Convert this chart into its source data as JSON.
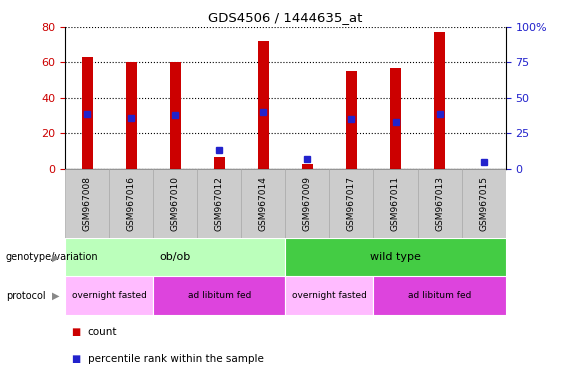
{
  "title": "GDS4506 / 1444635_at",
  "samples": [
    "GSM967008",
    "GSM967016",
    "GSM967010",
    "GSM967012",
    "GSM967014",
    "GSM967009",
    "GSM967017",
    "GSM967011",
    "GSM967013",
    "GSM967015"
  ],
  "counts": [
    63,
    60,
    60,
    7,
    72,
    3,
    55,
    57,
    77,
    0
  ],
  "percentile_ranks": [
    39,
    36,
    38,
    13,
    40,
    7,
    35,
    33,
    39,
    5
  ],
  "bar_color": "#cc0000",
  "percentile_color": "#2222cc",
  "ylim_left": [
    0,
    80
  ],
  "ylim_right": [
    0,
    100
  ],
  "yticks_left": [
    0,
    20,
    40,
    60,
    80
  ],
  "yticks_right": [
    0,
    25,
    50,
    75,
    100
  ],
  "genotype_groups": [
    {
      "label": "ob/ob",
      "start": 0,
      "end": 5,
      "color": "#bbffbb"
    },
    {
      "label": "wild type",
      "start": 5,
      "end": 10,
      "color": "#44cc44"
    }
  ],
  "protocol_groups": [
    {
      "label": "overnight fasted",
      "start": 0,
      "end": 2,
      "color": "#ffbbff"
    },
    {
      "label": "ad libitum fed",
      "start": 2,
      "end": 5,
      "color": "#dd44dd"
    },
    {
      "label": "overnight fasted",
      "start": 5,
      "end": 7,
      "color": "#ffbbff"
    },
    {
      "label": "ad libitum fed",
      "start": 7,
      "end": 10,
      "color": "#dd44dd"
    }
  ],
  "legend_count_color": "#cc0000",
  "legend_percentile_color": "#2222cc",
  "background_color": "#ffffff",
  "plot_bg_color": "#ffffff",
  "tick_bg_color": "#cccccc",
  "tick_border_color": "#aaaaaa"
}
